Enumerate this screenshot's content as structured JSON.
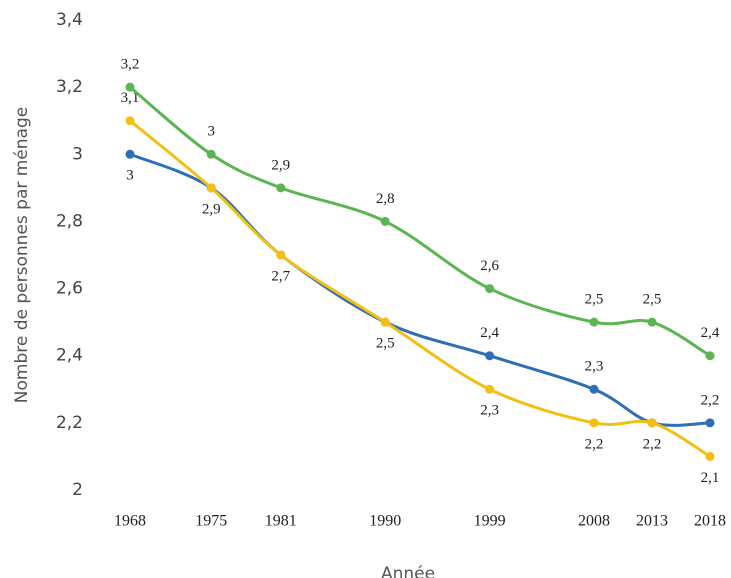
{
  "chart_data": {
    "type": "line",
    "y_label": "Nombre de personnes par ménage",
    "x_label": "Année",
    "x": [
      1968,
      1975,
      1981,
      1990,
      1999,
      2008,
      2013,
      2018
    ],
    "xlim": [
      1968,
      2018
    ],
    "xticks": [
      1968,
      1975,
      1981,
      1990,
      1999,
      2008,
      2013,
      2018
    ],
    "ylim": [
      2,
      3.4
    ],
    "yticks": [
      2,
      {
        "value": 2.2,
        "label": "2,2"
      },
      {
        "value": 2.4,
        "label": "2,4"
      },
      {
        "value": 2.6,
        "label": "2,6"
      },
      {
        "value": 2.8,
        "label": "2,8"
      },
      3,
      {
        "value": 3.2,
        "label": "3,2"
      },
      {
        "value": 3.4,
        "label": "3,4"
      }
    ],
    "grid": false,
    "series": [
      {
        "color": "#2f6db5",
        "values": [
          3,
          2.9,
          2.7,
          2.5,
          2.4,
          2.3,
          2.2,
          2.2
        ],
        "value_labels": [
          "3",
          null,
          null,
          null,
          "2,4",
          "2,3",
          null,
          "2,2"
        ]
      },
      {
        "color": "#f2c014",
        "values": [
          3.1,
          2.9,
          2.7,
          2.5,
          2.3,
          2.2,
          2.2,
          2.1
        ],
        "value_labels": [
          "3,1",
          "2,9",
          "2,7",
          "2,5",
          "2,3",
          "2,2",
          "2,2",
          "2,1"
        ]
      },
      {
        "color": "#5bb552",
        "values": [
          3.2,
          3,
          2.9,
          2.8,
          2.6,
          2.5,
          2.5,
          2.4
        ],
        "value_labels": [
          "3,2",
          "3",
          "2,9",
          "2,8",
          "2,6",
          "2,5",
          "2,5",
          "2,4"
        ]
      }
    ]
  }
}
